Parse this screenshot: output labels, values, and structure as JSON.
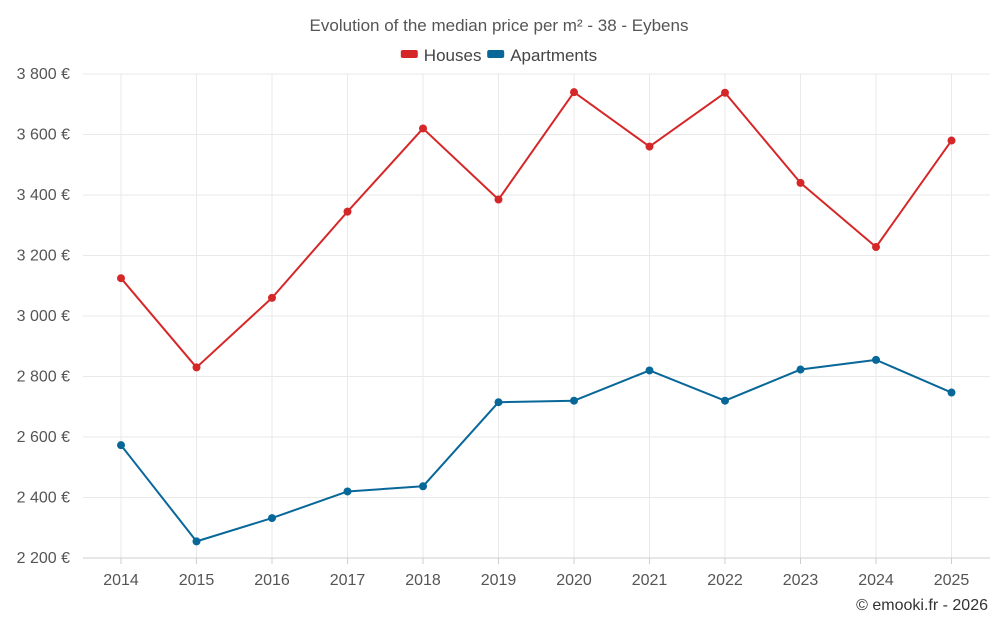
{
  "chart_data": {
    "type": "line",
    "title": "Evolution of the median price per m² - 38 - Eybens",
    "categories": [
      "2014",
      "2015",
      "2016",
      "2017",
      "2018",
      "2019",
      "2020",
      "2021",
      "2022",
      "2023",
      "2024",
      "2025"
    ],
    "series": [
      {
        "name": "Houses",
        "color": "#d62728",
        "values": [
          3125,
          2830,
          3060,
          3345,
          3620,
          3385,
          3740,
          3560,
          3738,
          3440,
          3228,
          3580
        ]
      },
      {
        "name": "Apartments",
        "color": "#086799",
        "values": [
          2573,
          2255,
          2332,
          2420,
          2437,
          2715,
          2720,
          2820,
          2720,
          2823,
          2855,
          2747
        ]
      }
    ],
    "ylim": [
      2200,
      3800
    ],
    "yticks": [
      2200,
      2400,
      2600,
      2800,
      3000,
      3200,
      3400,
      3600,
      3800
    ],
    "ytick_labels": [
      "2 200 €",
      "2 400 €",
      "2 600 €",
      "2 800 €",
      "3 000 €",
      "3 200 €",
      "3 400 €",
      "3 600 €",
      "3 800 €"
    ],
    "grid": true,
    "legend": "top-center",
    "xlabel": "",
    "ylabel": ""
  },
  "credit": "© emooki.fr - 2026"
}
